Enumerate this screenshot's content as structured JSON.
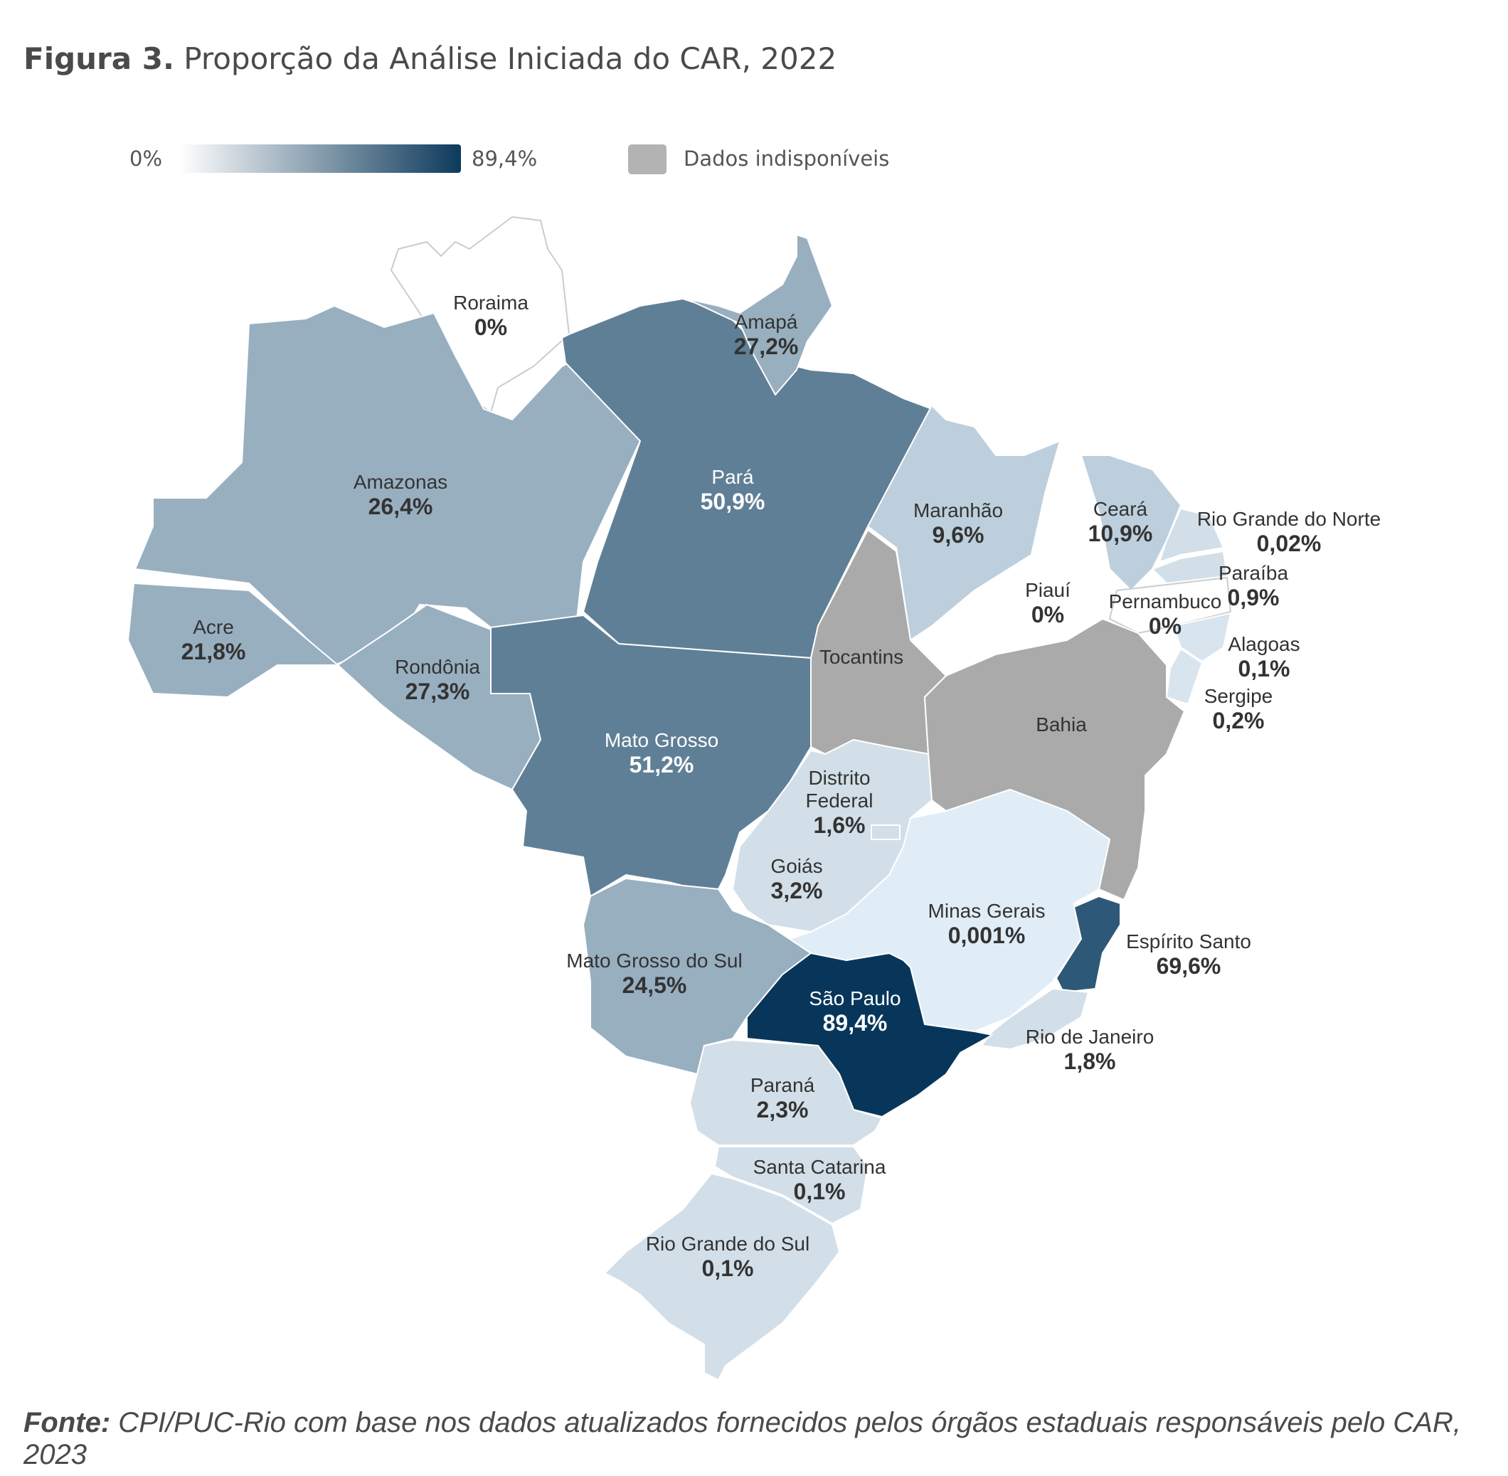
{
  "header": {
    "figure_label": "Figura 3.",
    "title": "Proporção da Análise Iniciada do CAR, 2022"
  },
  "legend": {
    "min": "0%",
    "max": "89,4%",
    "gradient_start": "#ffffff",
    "gradient_end": "#0d3a5c",
    "no_data_label": "Dados indisponíveis",
    "no_data_color": "#b3b3b3"
  },
  "states": [
    {
      "name": "Roraima",
      "value": "0%"
    },
    {
      "name": "Amapá",
      "value": "27,2%"
    },
    {
      "name": "Amazonas",
      "value": "26,4%"
    },
    {
      "name": "Pará",
      "value": "50,9%"
    },
    {
      "name": "Maranhão",
      "value": "9,6%"
    },
    {
      "name": "Ceará",
      "value": "10,9%"
    },
    {
      "name": "Rio Grande do Norte",
      "value": "0,02%"
    },
    {
      "name": "Paraíba",
      "value": "0,9%"
    },
    {
      "name": "Piauí",
      "value": "0%"
    },
    {
      "name": "Pernambuco",
      "value": "0%"
    },
    {
      "name": "Alagoas",
      "value": "0,1%"
    },
    {
      "name": "Sergipe",
      "value": "0,2%"
    },
    {
      "name": "Acre",
      "value": "21,8%"
    },
    {
      "name": "Rondônia",
      "value": "27,3%"
    },
    {
      "name": "Tocantins",
      "value": ""
    },
    {
      "name": "Bahia",
      "value": ""
    },
    {
      "name": "Mato Grosso",
      "value": "51,2%"
    },
    {
      "name": "Distrito Federal",
      "value": "1,6%"
    },
    {
      "name": "Goiás",
      "value": "3,2%"
    },
    {
      "name": "Minas Gerais",
      "value": "0,001%"
    },
    {
      "name": "Espírito Santo",
      "value": "69,6%"
    },
    {
      "name": "Mato Grosso do Sul",
      "value": "24,5%"
    },
    {
      "name": "São Paulo",
      "value": "89,4%"
    },
    {
      "name": "Rio de Janeiro",
      "value": "1,8%"
    },
    {
      "name": "Paraná",
      "value": "2,3%"
    },
    {
      "name": "Santa Catarina",
      "value": "0,1%"
    },
    {
      "name": "Rio Grande do Sul",
      "value": "0,1%"
    }
  ],
  "source": {
    "prefix": "Fonte:",
    "text": " CPI/PUC-Rio com base nos dados atualizados fornecidos pelos órgãos estaduais responsáveis pelo CAR, 2023"
  }
}
